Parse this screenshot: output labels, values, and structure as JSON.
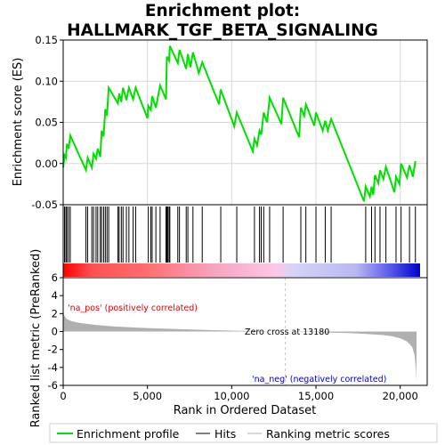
{
  "title_line1": "Enrichment plot:",
  "title_line2": "HALLMARK_TGF_BETA_SIGNALING",
  "colors": {
    "enrichment": "#00e000",
    "hits": "#000000",
    "metric": "#b0b0b0",
    "pos_label": "#e00000",
    "neg_label": "#0000d0",
    "zero_line": "#c8c8c8"
  },
  "chart_data": [
    {
      "type": "line",
      "name": "enrichment-profile",
      "ylabel": "Enrichment score (ES)",
      "ylim": [
        -0.05,
        0.15
      ],
      "yticks": [
        -0.05,
        0.0,
        0.05,
        0.1,
        0.15
      ],
      "ytick_labels": [
        "-0.05",
        "0.00",
        "0.05",
        "0.10",
        "0.15"
      ],
      "grid": true,
      "points": [
        [
          0,
          -0.005
        ],
        [
          80,
          0.01
        ],
        [
          160,
          0.007
        ],
        [
          220,
          0.024
        ],
        [
          320,
          0.018
        ],
        [
          420,
          0.034
        ],
        [
          1350,
          -0.008
        ],
        [
          1450,
          0.007
        ],
        [
          1700,
          -0.005
        ],
        [
          1800,
          0.012
        ],
        [
          1950,
          0.006
        ],
        [
          2050,
          0.018
        ],
        [
          2200,
          0.008
        ],
        [
          2280,
          0.04
        ],
        [
          2400,
          0.033
        ],
        [
          2500,
          0.066
        ],
        [
          2600,
          0.058
        ],
        [
          2700,
          0.092
        ],
        [
          3250,
          0.073
        ],
        [
          3320,
          0.085
        ],
        [
          3450,
          0.075
        ],
        [
          3550,
          0.092
        ],
        [
          3750,
          0.077
        ],
        [
          3900,
          0.092
        ],
        [
          4150,
          0.078
        ],
        [
          4300,
          0.092
        ],
        [
          5000,
          0.055
        ],
        [
          5050,
          0.07
        ],
        [
          5200,
          0.065
        ],
        [
          5280,
          0.082
        ],
        [
          5500,
          0.068
        ],
        [
          5750,
          0.095
        ],
        [
          6100,
          0.078
        ],
        [
          6150,
          0.13
        ],
        [
          6280,
          0.125
        ],
        [
          6330,
          0.143
        ],
        [
          6800,
          0.122
        ],
        [
          6900,
          0.138
        ],
        [
          7300,
          0.115
        ],
        [
          7400,
          0.133
        ],
        [
          7550,
          0.117
        ],
        [
          7700,
          0.135
        ],
        [
          8050,
          0.11
        ],
        [
          8250,
          0.123
        ],
        [
          9250,
          0.072
        ],
        [
          9350,
          0.09
        ],
        [
          10150,
          0.045
        ],
        [
          10300,
          0.062
        ],
        [
          11250,
          0.015
        ],
        [
          11350,
          0.03
        ],
        [
          11500,
          0.022
        ],
        [
          11650,
          0.04
        ],
        [
          11750,
          0.035
        ],
        [
          11900,
          0.062
        ],
        [
          12100,
          0.05
        ],
        [
          12250,
          0.08
        ],
        [
          12950,
          0.048
        ],
        [
          13050,
          0.08
        ],
        [
          14000,
          0.032
        ],
        [
          14100,
          0.068
        ],
        [
          14300,
          0.058
        ],
        [
          14400,
          0.072
        ],
        [
          14900,
          0.046
        ],
        [
          15000,
          0.062
        ],
        [
          15400,
          0.04
        ],
        [
          15550,
          0.052
        ],
        [
          15700,
          0.04
        ],
        [
          15900,
          0.054
        ],
        [
          17850,
          -0.046
        ],
        [
          17950,
          -0.028
        ],
        [
          18200,
          -0.04
        ],
        [
          18300,
          -0.028
        ],
        [
          18400,
          -0.038
        ],
        [
          18500,
          -0.014
        ],
        [
          18700,
          -0.024
        ],
        [
          18800,
          -0.008
        ],
        [
          19000,
          -0.019
        ],
        [
          19150,
          -0.004
        ],
        [
          19650,
          -0.035
        ],
        [
          19750,
          -0.016
        ],
        [
          19950,
          -0.025
        ],
        [
          20050,
          0.0
        ],
        [
          20400,
          -0.017
        ],
        [
          20550,
          -0.002
        ],
        [
          20750,
          -0.016
        ],
        [
          20900,
          0.003
        ]
      ]
    },
    {
      "type": "bar",
      "name": "hits",
      "x": [
        80,
        160,
        220,
        320,
        420,
        1350,
        1450,
        1700,
        1800,
        1950,
        2050,
        2200,
        2280,
        2400,
        2500,
        2600,
        2700,
        3250,
        3320,
        3450,
        3550,
        3750,
        3900,
        4150,
        4300,
        5050,
        5200,
        5280,
        5500,
        5750,
        6100,
        6150,
        6200,
        6280,
        6330,
        6800,
        6900,
        7300,
        7400,
        7700,
        8250,
        9350,
        10300,
        11350,
        11650,
        11750,
        11900,
        12250,
        13050,
        14100,
        14400,
        15000,
        15550,
        15900,
        17950,
        18300,
        18500,
        18800,
        19150,
        19750,
        20050,
        20550,
        20900
      ]
    },
    {
      "type": "area",
      "name": "ranking-metric",
      "xlabel": "Rank in Ordered Dataset",
      "ylabel": "Ranked list metric (PreRanked)",
      "xlim": [
        0,
        21600
      ],
      "xticks": [
        0,
        5000,
        10000,
        15000,
        20000
      ],
      "xtick_labels": [
        "0",
        "5,000",
        "10,000",
        "15,000",
        "20,000"
      ],
      "ylim": [
        -6,
        6
      ],
      "yticks": [
        -6,
        -4,
        -2,
        0,
        2,
        4,
        6
      ],
      "ytick_labels": [
        "-6",
        "-4",
        "-2",
        "0",
        "2",
        "4",
        "6"
      ],
      "zero_cross": 13180,
      "zero_cross_label": "Zero cross at 13180",
      "pos_label": "'na_pos' (positively correlated)",
      "neg_label": "'na_neg' (negatively correlated)",
      "points": [
        [
          0,
          2.4
        ],
        [
          60,
          1.8
        ],
        [
          200,
          1.4
        ],
        [
          500,
          1.15
        ],
        [
          1000,
          0.95
        ],
        [
          2000,
          0.72
        ],
        [
          3000,
          0.58
        ],
        [
          4000,
          0.47
        ],
        [
          5000,
          0.39
        ],
        [
          6000,
          0.32
        ],
        [
          7000,
          0.26
        ],
        [
          8000,
          0.2
        ],
        [
          9000,
          0.15
        ],
        [
          10000,
          0.1
        ],
        [
          11000,
          0.06
        ],
        [
          12000,
          0.03
        ],
        [
          13180,
          0.0
        ],
        [
          14000,
          -0.03
        ],
        [
          15000,
          -0.07
        ],
        [
          16000,
          -0.12
        ],
        [
          17000,
          -0.18
        ],
        [
          18000,
          -0.27
        ],
        [
          19000,
          -0.4
        ],
        [
          19500,
          -0.52
        ],
        [
          20000,
          -0.75
        ],
        [
          20400,
          -1.1
        ],
        [
          20700,
          -1.7
        ],
        [
          20850,
          -2.6
        ],
        [
          20930,
          -4.2
        ],
        [
          20960,
          -5.6
        ],
        [
          20970,
          0
        ]
      ]
    }
  ],
  "legend": {
    "items": [
      {
        "label": "Enrichment profile",
        "key": "enrichment"
      },
      {
        "label": "Hits",
        "key": "hits"
      },
      {
        "label": "Ranking metric scores",
        "key": "metric"
      }
    ]
  }
}
